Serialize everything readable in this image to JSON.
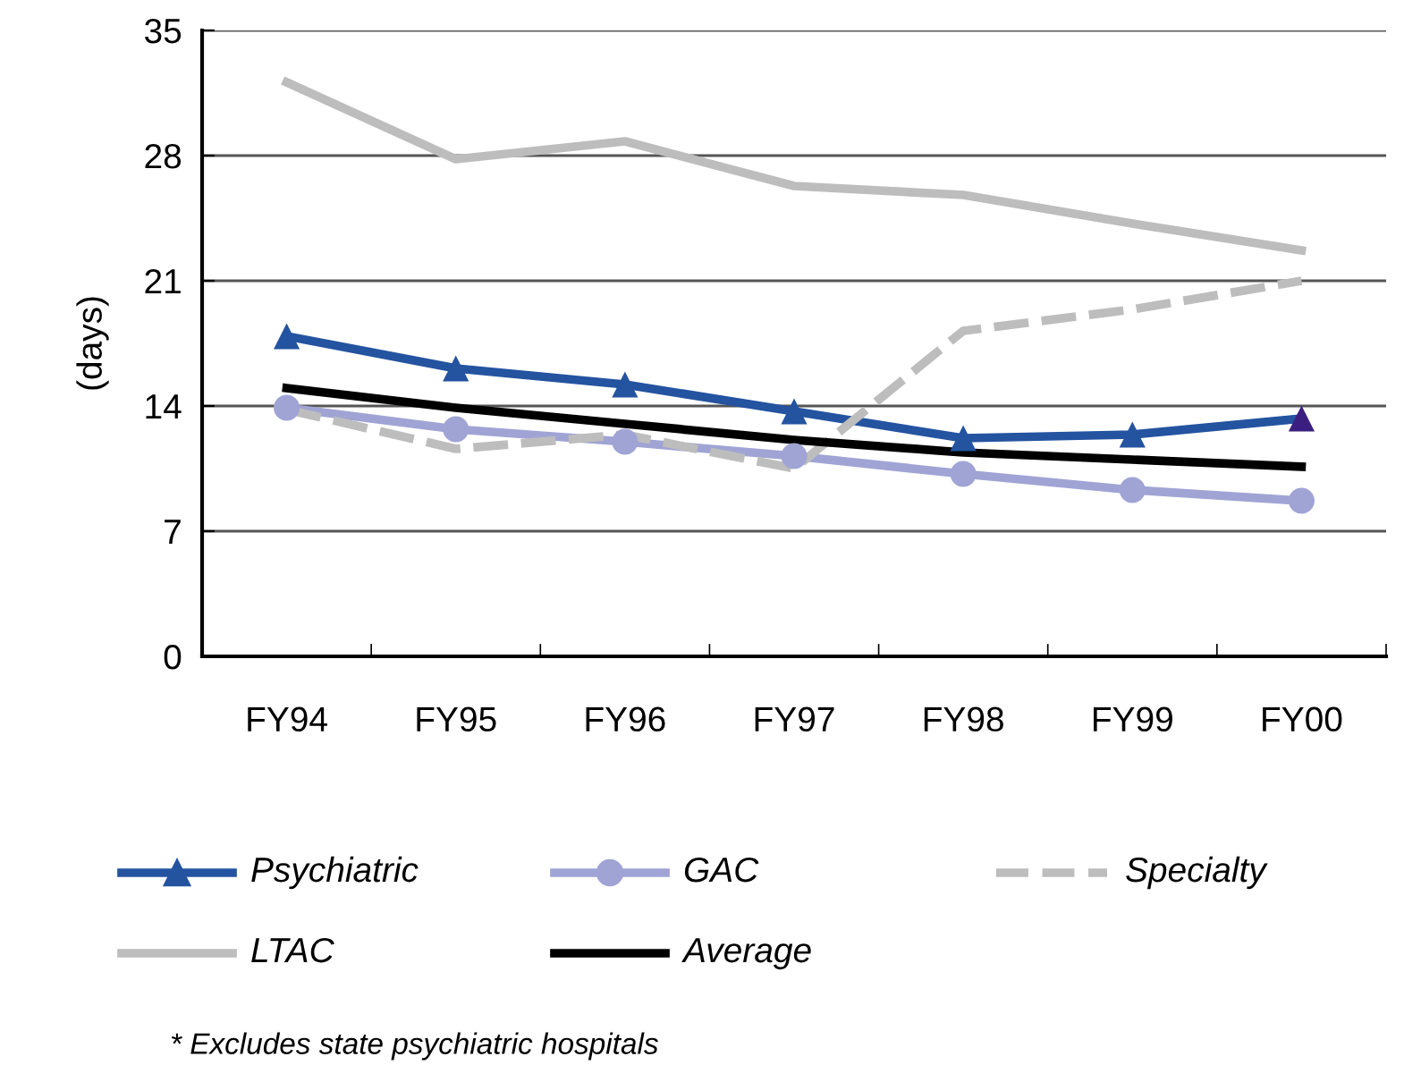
{
  "chart_data": {
    "type": "line",
    "ylabel": "(days)",
    "categories": [
      "FY94",
      "FY95",
      "FY96",
      "FY97",
      "FY98",
      "FY99",
      "FY00"
    ],
    "series": [
      {
        "name": "Psychiatric",
        "color": "#2453a0",
        "marker": "triangle",
        "colors": [
          "#2453a0",
          "#2453a0",
          "#2453a0",
          "#2453a0",
          "#2453a0",
          "#2453a0",
          "#3b1f80"
        ],
        "values": [
          17.9,
          16.1,
          15.2,
          13.7,
          12.2,
          12.4,
          13.3
        ]
      },
      {
        "name": "GAC",
        "color": "#a0a4d4",
        "marker": "circle",
        "values": [
          13.9,
          12.7,
          12.0,
          11.2,
          10.2,
          9.3,
          8.7
        ]
      },
      {
        "name": "Specialty",
        "color": "#bdbdbd",
        "line_style": "dashed",
        "values": [
          13.8,
          11.6,
          12.4,
          10.5,
          18.2,
          19.4,
          21.0
        ]
      },
      {
        "name": "LTAC",
        "color": "#bdbdbd",
        "values": [
          32.1,
          27.8,
          28.8,
          26.3,
          25.8,
          24.2,
          22.7
        ]
      },
      {
        "name": "Average",
        "color": "#000000",
        "values": [
          15.0,
          13.9,
          13.0,
          12.1,
          11.4,
          11.0,
          10.6
        ]
      }
    ],
    "ylim": [
      0,
      35
    ],
    "yticks": [
      0,
      7,
      14,
      21,
      28,
      35
    ],
    "grid": "y",
    "legend": "bottom",
    "annotations": [
      "* Excludes state psychiatric hospitals"
    ]
  }
}
